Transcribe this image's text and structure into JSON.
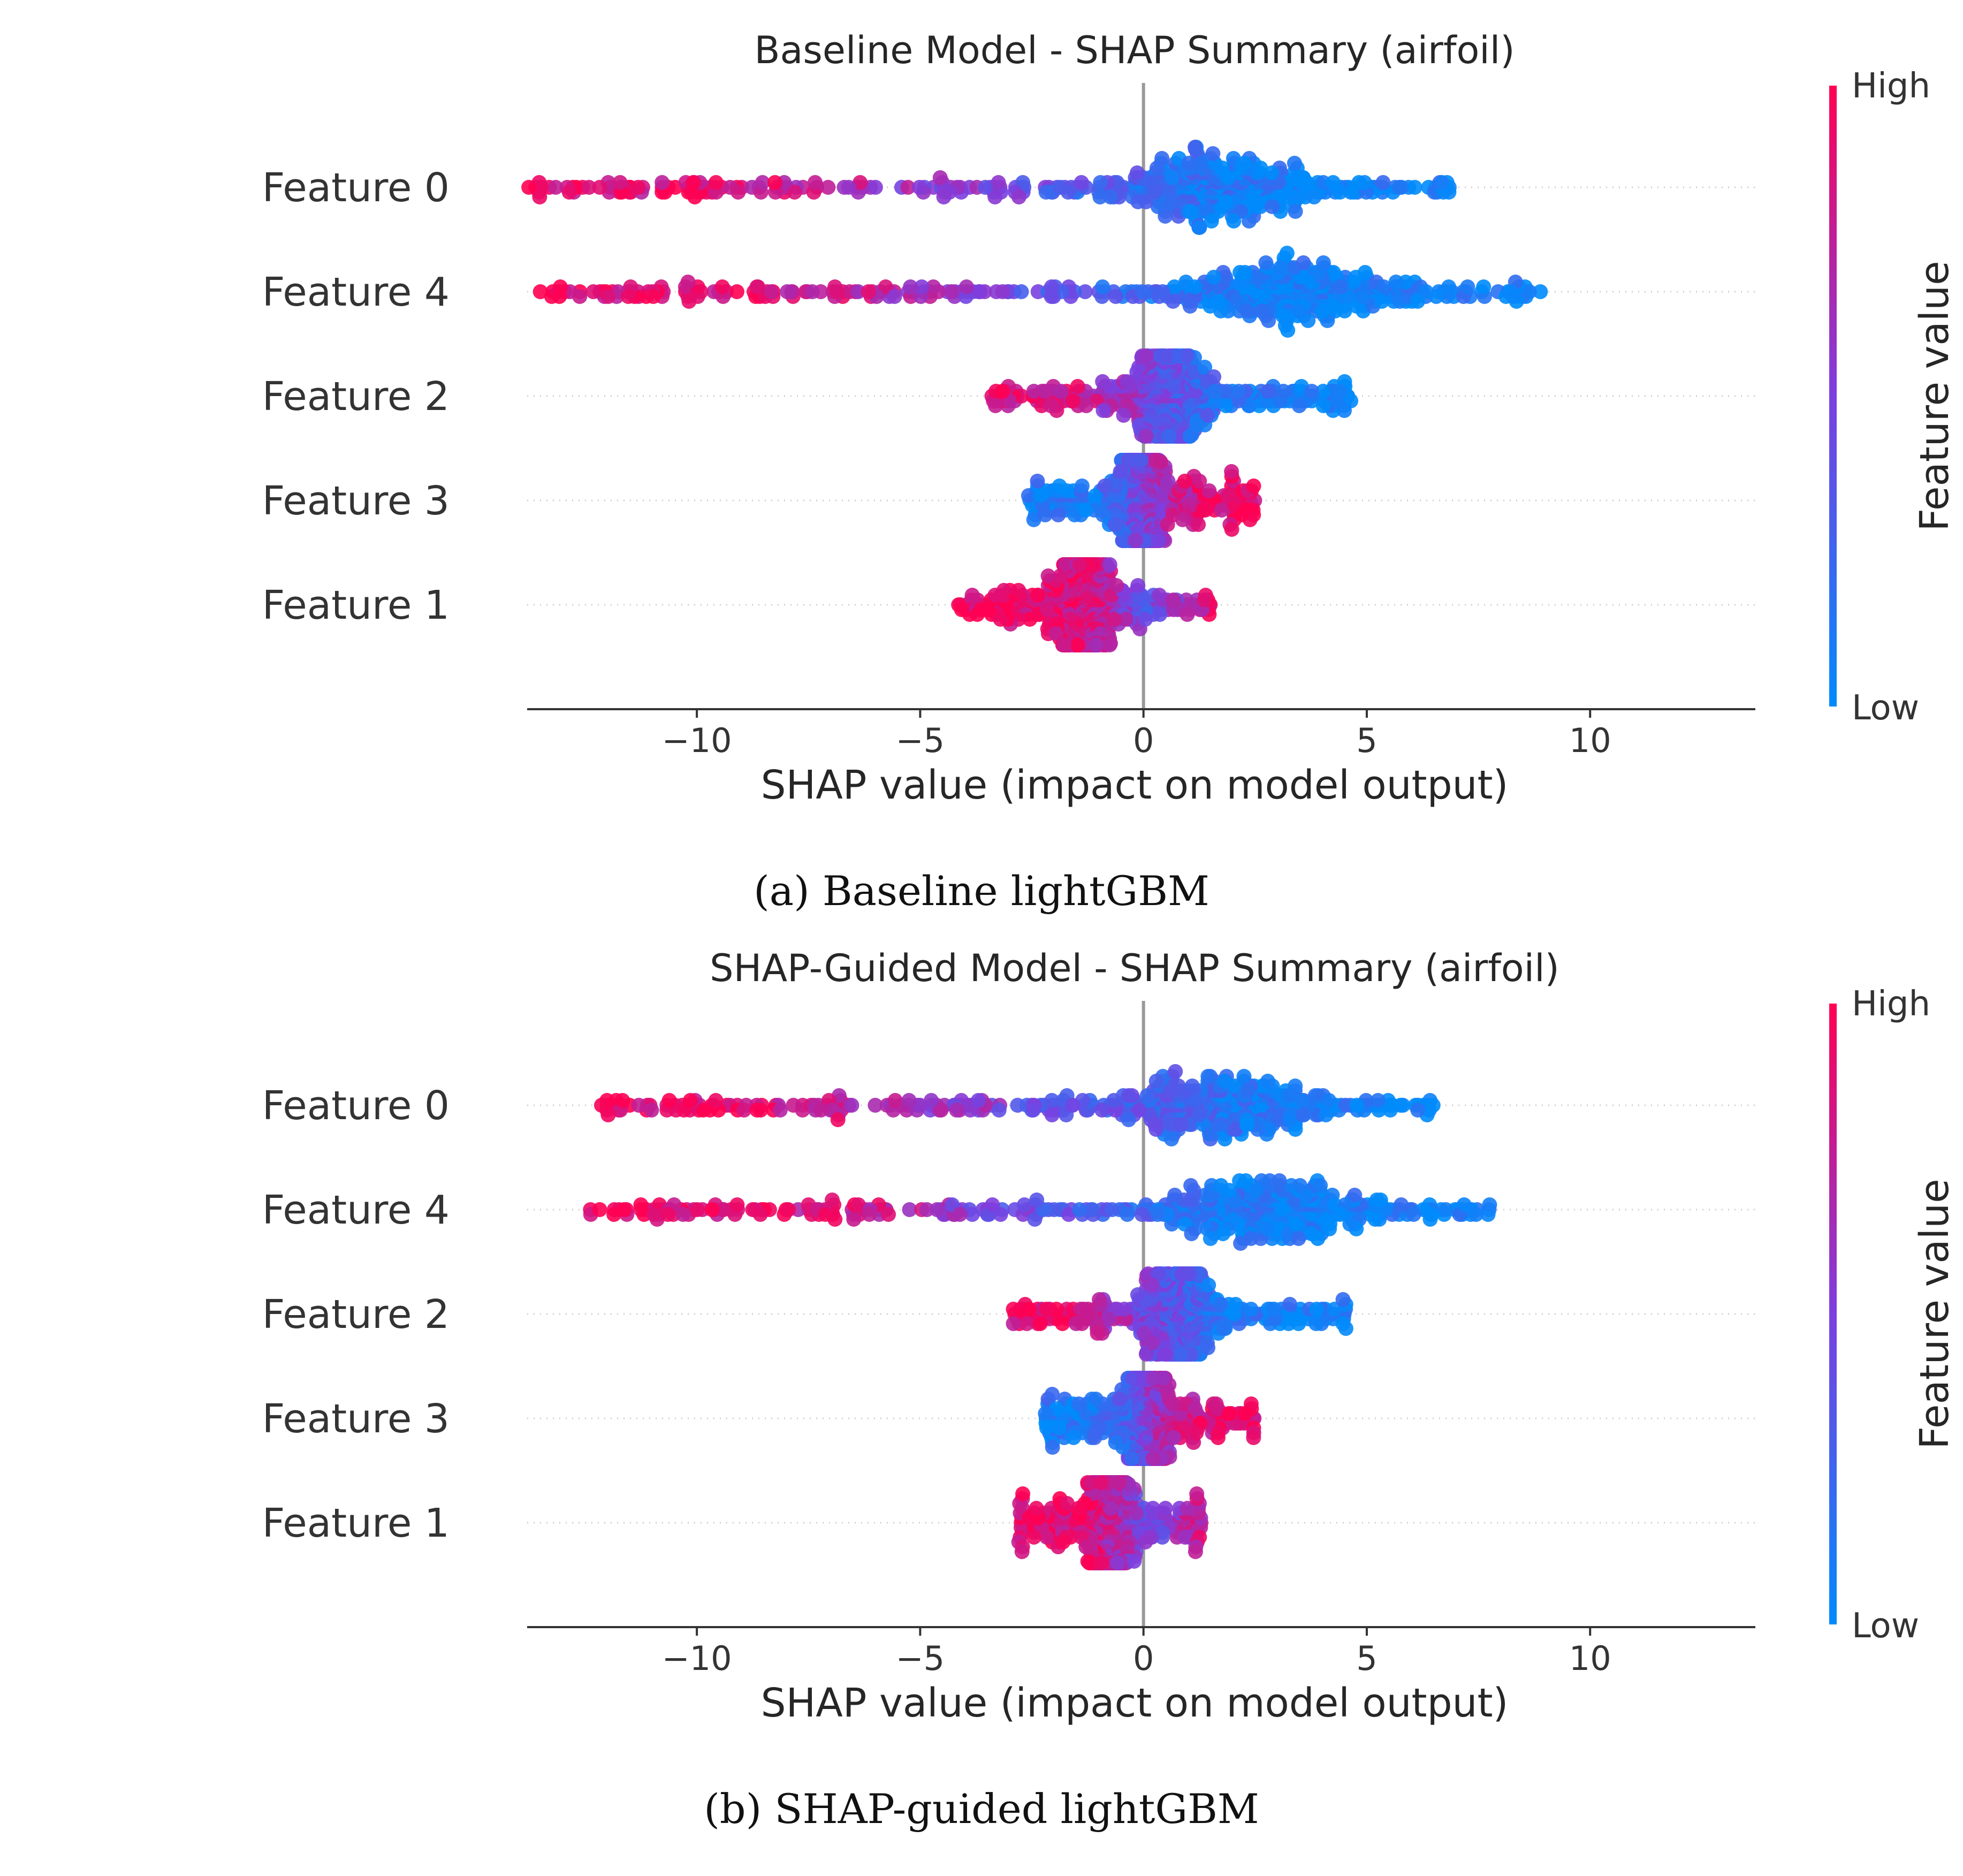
{
  "chart_data": [
    {
      "type": "scatter",
      "subtype": "shap-beeswarm",
      "title": "Baseline Model - SHAP Summary (airfoil)",
      "xlabel": "SHAP value (impact on model output)",
      "xlim": [
        -13.8,
        13.7
      ],
      "xticks": [
        -10,
        -5,
        0,
        5,
        10
      ],
      "xtick_labels": [
        "−10",
        "−5",
        "0",
        "5",
        "10"
      ],
      "features": [
        "Feature 0",
        "Feature 4",
        "Feature 2",
        "Feature 3",
        "Feature 1"
      ],
      "colorbar": {
        "label": "Feature value",
        "high": "High",
        "low": "Low",
        "high_color": "#ff0052",
        "low_color": "#008bfb"
      },
      "caption": "(a) Baseline lightGBM",
      "series": [
        {
          "feature": "Feature 0",
          "x_min": -13.8,
          "x_max": 6.9,
          "distribution": "high values negative, low values positive",
          "centroids": [
            [
              -13.6,
              0.95
            ],
            [
              -12.5,
              0.92
            ],
            [
              -11.5,
              0.9
            ],
            [
              -9.5,
              0.88
            ],
            [
              -8.0,
              0.8
            ],
            [
              -6.5,
              0.7
            ],
            [
              -4.5,
              0.55
            ],
            [
              -3.0,
              0.45
            ],
            [
              -1.5,
              0.3
            ],
            [
              0.5,
              0.2
            ],
            [
              1.8,
              0.1
            ],
            [
              3.5,
              0.05
            ],
            [
              4.5,
              0.05
            ],
            [
              6.0,
              0.05
            ],
            [
              6.9,
              0.05
            ]
          ]
        },
        {
          "feature": "Feature 4",
          "x_min": -13.7,
          "x_max": 9.0,
          "distribution": "high values negative, low values positive",
          "centroids": [
            [
              -13.5,
              0.95
            ],
            [
              -12.3,
              0.92
            ],
            [
              -11.7,
              0.9
            ],
            [
              -9.5,
              0.88
            ],
            [
              -7.5,
              0.82
            ],
            [
              -6.0,
              0.75
            ],
            [
              -4.5,
              0.6
            ],
            [
              -3.5,
              0.5
            ],
            [
              -2.0,
              0.35
            ],
            [
              0.0,
              0.2
            ],
            [
              1.2,
              0.1
            ],
            [
              3.0,
              0.05
            ],
            [
              5.5,
              0.05
            ],
            [
              7.5,
              0.05
            ],
            [
              9.0,
              0.05
            ]
          ]
        },
        {
          "feature": "Feature 2",
          "x_min": -3.4,
          "x_max": 4.7,
          "distribution": "high values negative, low values positive",
          "centroids": [
            [
              -3.2,
              0.9
            ],
            [
              -2.0,
              0.85
            ],
            [
              -1.0,
              0.7
            ],
            [
              0.0,
              0.5
            ],
            [
              1.0,
              0.3
            ],
            [
              2.0,
              0.15
            ],
            [
              3.5,
              0.05
            ],
            [
              4.6,
              0.05
            ]
          ]
        },
        {
          "feature": "Feature 3",
          "x_min": -2.6,
          "x_max": 2.5,
          "distribution": "low values negative, high values positive",
          "centroids": [
            [
              -2.5,
              0.1
            ],
            [
              -1.5,
              0.1
            ],
            [
              -0.8,
              0.2
            ],
            [
              0.3,
              0.6
            ],
            [
              1.0,
              0.8
            ],
            [
              1.8,
              0.92
            ],
            [
              2.4,
              0.95
            ]
          ]
        },
        {
          "feature": "Feature 1",
          "x_min": -4.2,
          "x_max": 1.5,
          "distribution": "high values negative, mixed near zero",
          "centroids": [
            [
              -4.0,
              0.95
            ],
            [
              -3.0,
              0.92
            ],
            [
              -2.0,
              0.9
            ],
            [
              -1.0,
              0.8
            ],
            [
              0.0,
              0.4
            ],
            [
              0.8,
              0.6
            ],
            [
              1.4,
              0.85
            ]
          ]
        }
      ]
    },
    {
      "type": "scatter",
      "subtype": "shap-beeswarm",
      "title": "SHAP-Guided Model - SHAP Summary (airfoil)",
      "xlabel": "SHAP value (impact on model output)",
      "xlim": [
        -13.8,
        13.7
      ],
      "xticks": [
        -10,
        -5,
        0,
        5,
        10
      ],
      "xtick_labels": [
        "−10",
        "−5",
        "0",
        "5",
        "10"
      ],
      "features": [
        "Feature 0",
        "Feature 4",
        "Feature 2",
        "Feature 3",
        "Feature 1"
      ],
      "colorbar": {
        "label": "Feature value",
        "high": "High",
        "low": "Low",
        "high_color": "#ff0052",
        "low_color": "#008bfb"
      },
      "caption": "(b) SHAP-guided lightGBM",
      "series": [
        {
          "feature": "Feature 0",
          "x_min": -12.2,
          "x_max": 6.5,
          "distribution": "high values negative, low values positive",
          "centroids": [
            [
              -12.0,
              0.95
            ],
            [
              -11.0,
              0.92
            ],
            [
              -9.5,
              0.9
            ],
            [
              -8.0,
              0.85
            ],
            [
              -6.5,
              0.75
            ],
            [
              -5.0,
              0.65
            ],
            [
              -3.5,
              0.55
            ],
            [
              -2.0,
              0.4
            ],
            [
              -0.5,
              0.3
            ],
            [
              1.0,
              0.25
            ],
            [
              2.5,
              0.1
            ],
            [
              4.0,
              0.05
            ],
            [
              5.5,
              0.05
            ],
            [
              6.4,
              0.05
            ]
          ]
        },
        {
          "feature": "Feature 4",
          "x_min": -12.4,
          "x_max": 7.8,
          "distribution": "high values negative, low values positive",
          "centroids": [
            [
              -12.2,
              0.95
            ],
            [
              -11.3,
              0.92
            ],
            [
              -9.5,
              0.88
            ],
            [
              -7.5,
              0.85
            ],
            [
              -6.0,
              0.8
            ],
            [
              -4.5,
              0.6
            ],
            [
              -3.5,
              0.5
            ],
            [
              -2.0,
              0.35
            ],
            [
              0.0,
              0.2
            ],
            [
              1.5,
              0.1
            ],
            [
              3.5,
              0.05
            ],
            [
              5.5,
              0.05
            ],
            [
              7.0,
              0.05
            ],
            [
              7.7,
              0.05
            ]
          ]
        },
        {
          "feature": "Feature 2",
          "x_min": -3.0,
          "x_max": 4.6,
          "distribution": "high values negative, low values positive",
          "centroids": [
            [
              -2.9,
              0.92
            ],
            [
              -2.0,
              0.88
            ],
            [
              -1.0,
              0.75
            ],
            [
              0.0,
              0.5
            ],
            [
              1.0,
              0.3
            ],
            [
              2.0,
              0.1
            ],
            [
              3.5,
              0.05
            ],
            [
              4.5,
              0.05
            ]
          ]
        },
        {
          "feature": "Feature 3",
          "x_min": -2.2,
          "x_max": 2.5,
          "distribution": "low values negative, high values positive",
          "centroids": [
            [
              -2.1,
              0.1
            ],
            [
              -1.2,
              0.1
            ],
            [
              -0.5,
              0.25
            ],
            [
              0.3,
              0.6
            ],
            [
              1.0,
              0.8
            ],
            [
              1.8,
              0.92
            ],
            [
              2.4,
              0.95
            ]
          ]
        },
        {
          "feature": "Feature 1",
          "x_min": -2.8,
          "x_max": 1.3,
          "distribution": "high values negative, mixed near zero",
          "centroids": [
            [
              -2.7,
              0.95
            ],
            [
              -2.0,
              0.92
            ],
            [
              -1.2,
              0.85
            ],
            [
              -0.3,
              0.6
            ],
            [
              0.2,
              0.4
            ],
            [
              0.8,
              0.6
            ],
            [
              1.2,
              0.8
            ]
          ]
        }
      ]
    }
  ]
}
